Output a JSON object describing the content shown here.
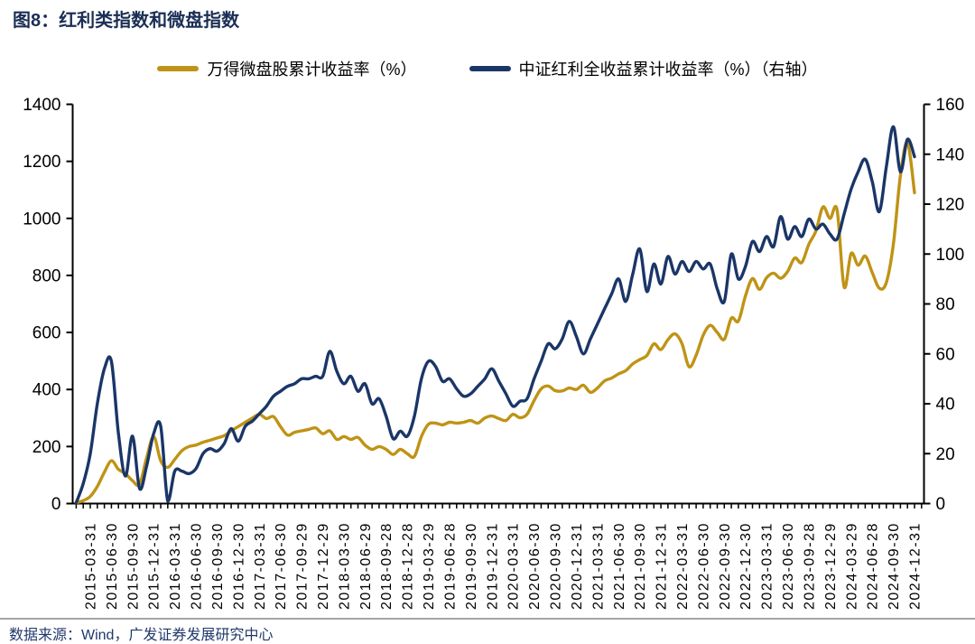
{
  "page": {
    "title": "图8：红利类指数和微盘指数",
    "source_note": "数据来源：Wind，广发证券发展研究中心"
  },
  "colors": {
    "title_text": "#1B2F55",
    "footer_text": "#20386B",
    "divider": "#A6A6A6",
    "axis": "#000000",
    "micro_cap_line": "#BF9315",
    "dividend_line": "#1A3668"
  },
  "legend": [
    {
      "label": "万得微盘股累计收益率（%）",
      "color": "#BF9315"
    },
    {
      "label": "中证红利全收益累计收益率（%）（右轴）",
      "color": "#1A3668"
    }
  ],
  "chart_data": {
    "type": "line",
    "title": "图8：红利类指数和微盘指数",
    "grid": false,
    "legend_position": "top",
    "left_axis": {
      "min": 0,
      "max": 1400,
      "ticks": [
        0,
        200,
        400,
        600,
        800,
        1000,
        1200,
        1400
      ]
    },
    "right_axis": {
      "min": 0,
      "max": 160,
      "ticks": [
        0,
        20,
        40,
        60,
        80,
        100,
        120,
        140,
        160
      ],
      "label": "右轴"
    },
    "x_tick_labels": [
      "2015-03-31",
      "2015-06-30",
      "2015-09-30",
      "2015-12-31",
      "2016-03-31",
      "2016-06-30",
      "2016-09-30",
      "2016-12-30",
      "2017-03-31",
      "2017-06-30",
      "2017-09-29",
      "2017-12-29",
      "2018-03-30",
      "2018-06-29",
      "2018-09-28",
      "2018-12-28",
      "2019-03-29",
      "2019-06-28",
      "2019-09-30",
      "2019-12-31",
      "2020-03-31",
      "2020-06-30",
      "2020-09-30",
      "2020-12-31",
      "2021-03-31",
      "2021-06-30",
      "2021-09-30",
      "2021-12-31",
      "2022-03-31",
      "2022-06-30",
      "2022-09-30",
      "2022-12-30",
      "2023-03-31",
      "2023-06-30",
      "2023-09-28",
      "2023-12-29",
      "2024-03-29",
      "2024-06-28",
      "2024-09-30",
      "2024-12-31"
    ],
    "x_monthly": [
      "2015-01",
      "2015-02",
      "2015-03",
      "2015-04",
      "2015-05",
      "2015-06",
      "2015-07",
      "2015-08",
      "2015-09",
      "2015-10",
      "2015-11",
      "2015-12",
      "2016-01",
      "2016-02",
      "2016-03",
      "2016-04",
      "2016-05",
      "2016-06",
      "2016-07",
      "2016-08",
      "2016-09",
      "2016-10",
      "2016-11",
      "2016-12",
      "2017-01",
      "2017-02",
      "2017-03",
      "2017-04",
      "2017-05",
      "2017-06",
      "2017-07",
      "2017-08",
      "2017-09",
      "2017-10",
      "2017-11",
      "2017-12",
      "2018-01",
      "2018-02",
      "2018-03",
      "2018-04",
      "2018-05",
      "2018-06",
      "2018-07",
      "2018-08",
      "2018-09",
      "2018-10",
      "2018-11",
      "2018-12",
      "2019-01",
      "2019-02",
      "2019-03",
      "2019-04",
      "2019-05",
      "2019-06",
      "2019-07",
      "2019-08",
      "2019-09",
      "2019-10",
      "2019-11",
      "2019-12",
      "2020-01",
      "2020-02",
      "2020-03",
      "2020-04",
      "2020-05",
      "2020-06",
      "2020-07",
      "2020-08",
      "2020-09",
      "2020-10",
      "2020-11",
      "2020-12",
      "2021-01",
      "2021-02",
      "2021-03",
      "2021-04",
      "2021-05",
      "2021-06",
      "2021-07",
      "2021-08",
      "2021-09",
      "2021-10",
      "2021-11",
      "2021-12",
      "2022-01",
      "2022-02",
      "2022-03",
      "2022-04",
      "2022-05",
      "2022-06",
      "2022-07",
      "2022-08",
      "2022-09",
      "2022-10",
      "2022-11",
      "2022-12",
      "2023-01",
      "2023-02",
      "2023-03",
      "2023-04",
      "2023-05",
      "2023-06",
      "2023-07",
      "2023-08",
      "2023-09",
      "2023-10",
      "2023-11",
      "2023-12",
      "2024-01",
      "2024-02",
      "2024-03",
      "2024-04",
      "2024-05",
      "2024-06",
      "2024-07",
      "2024-08",
      "2024-09",
      "2024-10",
      "2024-11",
      "2024-12"
    ],
    "series": [
      {
        "name": "万得微盘股累计收益率（%）",
        "axis": "left",
        "color": "#BF9315",
        "values": [
          0,
          10,
          25,
          60,
          110,
          150,
          120,
          105,
          80,
          68,
          160,
          235,
          150,
          127,
          155,
          185,
          200,
          205,
          215,
          222,
          230,
          238,
          255,
          270,
          285,
          300,
          313,
          298,
          305,
          270,
          240,
          250,
          255,
          260,
          265,
          245,
          255,
          225,
          235,
          225,
          232,
          205,
          190,
          200,
          190,
          172,
          190,
          175,
          165,
          235,
          278,
          282,
          276,
          285,
          282,
          285,
          291,
          282,
          300,
          307,
          298,
          291,
          313,
          301,
          313,
          361,
          402,
          412,
          396,
          395,
          405,
          400,
          415,
          390,
          405,
          430,
          440,
          455,
          466,
          490,
          505,
          519,
          560,
          540,
          575,
          595,
          560,
          480,
          520,
          590,
          625,
          600,
          576,
          650,
          640,
          728,
          789,
          751,
          792,
          808,
          790,
          814,
          861,
          845,
          909,
          956,
          1040,
          1000,
          1030,
          760,
          877,
          836,
          868,
          810,
          755,
          775,
          910,
          1150,
          1265,
          1090
        ]
      },
      {
        "name": "中证红利全收益累计收益率（%）（右轴）",
        "axis": "right",
        "color": "#1A3668",
        "values": [
          0,
          8,
          20,
          40,
          54,
          57,
          28,
          11,
          27,
          6,
          15,
          28,
          31,
          1,
          13,
          13,
          12,
          14,
          20,
          22,
          21,
          24,
          30,
          25,
          31,
          33,
          36,
          39,
          43,
          45,
          47,
          48,
          50,
          50,
          51,
          51,
          61,
          53,
          48,
          51,
          45,
          48,
          40,
          42,
          35,
          26,
          29,
          27,
          35,
          50,
          57,
          55,
          49,
          50,
          46,
          43,
          44,
          47,
          50,
          54,
          49,
          44,
          39,
          41,
          42,
          50,
          57,
          64,
          62,
          66,
          73,
          67,
          60,
          66,
          72,
          78,
          84,
          90,
          81,
          92,
          102,
          85,
          96,
          88,
          99,
          92,
          97,
          93,
          97,
          94,
          96,
          86,
          81,
          100,
          90,
          95,
          105,
          101,
          107,
          103,
          115,
          106,
          111,
          107,
          114,
          110,
          112,
          108,
          106,
          116,
          126,
          133,
          138,
          129,
          117,
          135,
          151,
          133,
          146,
          139
        ]
      }
    ]
  }
}
